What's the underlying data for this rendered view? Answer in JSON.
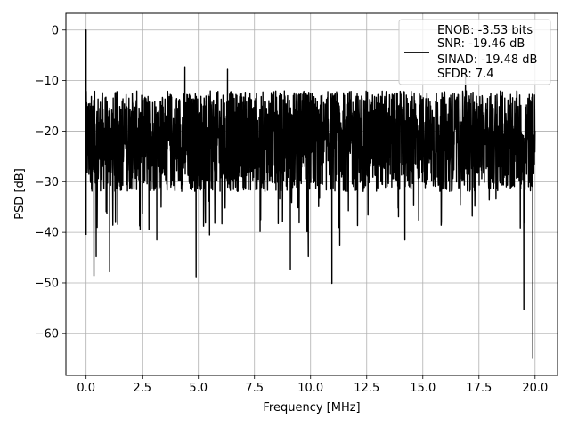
{
  "chart_data": {
    "type": "line",
    "title": "",
    "xlabel": "Frequency [MHz]",
    "ylabel": "PSD [dB]",
    "xlim": [
      -0.9,
      21.0
    ],
    "ylim": [
      -68.3,
      3.3
    ],
    "xticks": [
      0.0,
      2.5,
      5.0,
      7.5,
      10.0,
      12.5,
      15.0,
      17.5,
      20.0
    ],
    "xtick_labels": [
      "0.0",
      "2.5",
      "5.0",
      "7.5",
      "10.0",
      "12.5",
      "15.0",
      "17.5",
      "20.0"
    ],
    "yticks": [
      0,
      -10,
      -20,
      -30,
      -40,
      -50,
      -60
    ],
    "ytick_labels": [
      "0",
      "−10",
      "−20",
      "−30",
      "−40",
      "−50",
      "−60"
    ],
    "grid": true,
    "legend": {
      "position": "top-right",
      "entries": [
        "ENOB: -3.53 bits",
        "SNR: -19.46 dB",
        "SINAD: -19.48 dB",
        "SFDR: 7.4"
      ]
    },
    "series": [
      {
        "color": "#000000",
        "x_range": [
          0.0,
          20.0
        ],
        "noise_band": {
          "upper_envelope": -14,
          "lower_envelope": -33,
          "mean": -22
        },
        "features": [
          {
            "x": 0.0,
            "y": 0.0
          },
          {
            "x": 0.0,
            "y": -40.5
          },
          {
            "x": 0.35,
            "y": -48.6
          },
          {
            "x": 0.45,
            "y": -44.8
          },
          {
            "x": 1.05,
            "y": -47.8
          },
          {
            "x": 2.8,
            "y": -39.5
          },
          {
            "x": 3.15,
            "y": -41.5
          },
          {
            "x": 4.4,
            "y": -7.3
          },
          {
            "x": 4.9,
            "y": -48.8
          },
          {
            "x": 5.5,
            "y": -40.5
          },
          {
            "x": 6.3,
            "y": -7.8
          },
          {
            "x": 9.1,
            "y": -47.3
          },
          {
            "x": 9.9,
            "y": -44.8
          },
          {
            "x": 10.95,
            "y": -50.1
          },
          {
            "x": 11.3,
            "y": -42.5
          },
          {
            "x": 14.2,
            "y": -41.5
          },
          {
            "x": 16.9,
            "y": -9.0
          },
          {
            "x": 19.5,
            "y": -55.3
          },
          {
            "x": 19.9,
            "y": -64.8
          },
          {
            "x": 20.0,
            "y": -20.0
          }
        ]
      }
    ]
  }
}
